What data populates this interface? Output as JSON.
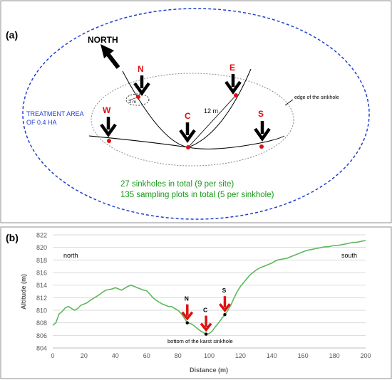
{
  "panel_a": {
    "label": "(a)",
    "north_label": "NORTH",
    "treatment_area_line1": "TREATMENT AREA",
    "treatment_area_line2": "OF 0.4 HA",
    "sinkhole_edge_label": "edge of the sinkhole",
    "distance_label": "12 m",
    "plot_size_label": "2 m",
    "plot_labels": {
      "N": "N",
      "E": "E",
      "W": "W",
      "C": "C",
      "S": "S"
    },
    "summary_line1": "27 sinkholes in total (9 per site)",
    "summary_line2": "135 sampling plots in total (5 per sinkhole)",
    "colors": {
      "treatment_boundary": "#1f3fd0",
      "plot_label": "#e01010",
      "summary_text": "#1a9a1a"
    }
  },
  "panel_b": {
    "label": "(b)",
    "chart_data": {
      "type": "line",
      "xlabel": "Distance (m)",
      "ylabel": "Altitude (m)",
      "xlim": [
        0,
        200
      ],
      "ylim": [
        804,
        822
      ],
      "xticks": [
        0,
        20,
        40,
        60,
        80,
        100,
        120,
        140,
        160,
        180,
        200
      ],
      "yticks": [
        804,
        806,
        808,
        810,
        812,
        814,
        816,
        818,
        820,
        822
      ],
      "grid": "horizontal",
      "line_color": "#5cb85c",
      "annotations": {
        "north": "north",
        "south": "south",
        "bottom": "bottom of the karst sinkhole",
        "N": "N",
        "C": "C",
        "S": "S"
      },
      "markers": [
        {
          "label": "N",
          "x": 86,
          "y": 808
        },
        {
          "label": "C",
          "x": 98,
          "y": 806.2
        },
        {
          "label": "S",
          "x": 110,
          "y": 809.3
        }
      ],
      "x": [
        0,
        2,
        4,
        6,
        8,
        10,
        12,
        14,
        16,
        18,
        20,
        22,
        24,
        26,
        28,
        30,
        32,
        34,
        36,
        38,
        40,
        42,
        44,
        46,
        48,
        50,
        52,
        54,
        56,
        58,
        60,
        62,
        64,
        66,
        68,
        70,
        72,
        74,
        76,
        78,
        80,
        82,
        84,
        86,
        88,
        90,
        92,
        94,
        96,
        98,
        100,
        102,
        104,
        106,
        108,
        110,
        112,
        114,
        116,
        118,
        120,
        122,
        124,
        126,
        128,
        130,
        132,
        134,
        136,
        138,
        140,
        142,
        144,
        146,
        148,
        150,
        152,
        154,
        156,
        158,
        160,
        162,
        164,
        166,
        168,
        170,
        172,
        174,
        176,
        178,
        180,
        182,
        184,
        186,
        188,
        190,
        192,
        194,
        196,
        198,
        200
      ],
      "y": [
        807.6,
        808.0,
        809.4,
        809.8,
        810.4,
        810.6,
        810.3,
        810.0,
        810.3,
        810.8,
        811.0,
        811.2,
        811.6,
        811.9,
        812.2,
        812.5,
        812.9,
        813.2,
        813.3,
        813.4,
        813.6,
        813.4,
        813.2,
        813.5,
        813.8,
        814.0,
        813.8,
        813.6,
        813.4,
        813.2,
        813.1,
        812.6,
        812.0,
        811.6,
        811.3,
        811.0,
        810.8,
        810.6,
        810.6,
        810.3,
        810.0,
        809.5,
        808.8,
        808.0,
        807.9,
        807.6,
        807.2,
        806.8,
        806.5,
        806.2,
        806.3,
        806.7,
        807.4,
        808.0,
        808.7,
        809.3,
        810.0,
        810.9,
        812.0,
        813.0,
        813.8,
        814.4,
        815.0,
        815.6,
        816.0,
        816.4,
        816.7,
        816.9,
        817.1,
        817.3,
        817.5,
        817.8,
        818.0,
        818.1,
        818.2,
        818.3,
        818.5,
        818.7,
        818.9,
        819.1,
        819.3,
        819.5,
        819.6,
        819.7,
        819.8,
        819.9,
        820.0,
        820.1,
        820.1,
        820.2,
        820.3,
        820.3,
        820.4,
        820.5,
        820.6,
        820.7,
        820.8,
        820.8,
        820.9,
        821.0,
        821.1
      ]
    }
  }
}
